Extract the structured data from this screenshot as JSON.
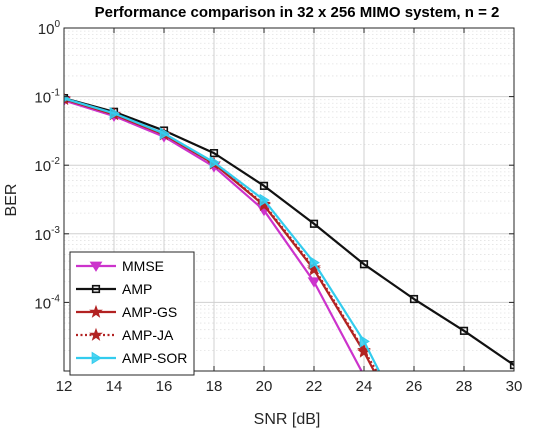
{
  "chart_data": {
    "type": "line",
    "title": "Performance comparison in 32 x 256 MIMO system, n = 2",
    "xlabel": "SNR [dB]",
    "ylabel": "BER",
    "x_ticks": [
      12,
      14,
      16,
      18,
      20,
      22,
      24,
      26,
      28,
      30
    ],
    "xlim": [
      12,
      30
    ],
    "y_scale": "log",
    "ylim": [
      1e-05,
      1
    ],
    "y_ticks": [
      {
        "value": 1,
        "base": "10",
        "exp": "0"
      },
      {
        "value": 0.1,
        "base": "10",
        "exp": "-1"
      },
      {
        "value": 0.01,
        "base": "10",
        "exp": "-2"
      },
      {
        "value": 0.001,
        "base": "10",
        "exp": "-3"
      },
      {
        "value": 0.0001,
        "base": "10",
        "exp": "-4"
      }
    ],
    "grid": true,
    "legend_position": "bottom-left",
    "series": [
      {
        "name": "MMSE",
        "color": "#cc33cc",
        "dash": "solid",
        "marker": "triangle-down",
        "x": [
          12,
          14,
          16,
          18,
          20,
          22,
          23.9
        ],
        "y": [
          0.088,
          0.052,
          0.026,
          0.0095,
          0.0022,
          0.0002,
          1e-05
        ]
      },
      {
        "name": "AMP",
        "color": "#111111",
        "dash": "solid",
        "marker": "square",
        "x": [
          12,
          14,
          16,
          18,
          20,
          22,
          24,
          26,
          28,
          30
        ],
        "y": [
          0.095,
          0.06,
          0.032,
          0.015,
          0.005,
          0.0014,
          0.00036,
          0.000112,
          3.85e-05,
          1.22e-05
        ]
      },
      {
        "name": "AMP-GS",
        "color": "#b22222",
        "dash": "solid",
        "marker": "star",
        "x": [
          12,
          14,
          16,
          18,
          20,
          22,
          24,
          24.4
        ],
        "y": [
          0.092,
          0.055,
          0.028,
          0.0105,
          0.0026,
          0.0003,
          1.9e-05,
          1e-05
        ]
      },
      {
        "name": "AMP-JA",
        "color": "#b22222",
        "dash": "dotted",
        "marker": "star",
        "x": [
          12,
          14,
          16,
          18,
          20,
          22,
          24,
          24.5
        ],
        "y": [
          0.092,
          0.055,
          0.028,
          0.0105,
          0.0027,
          0.00032,
          2e-05,
          1e-05
        ]
      },
      {
        "name": "AMP-SOR",
        "color": "#33ccee",
        "dash": "solid",
        "marker": "triangle-right",
        "x": [
          12,
          14,
          16,
          18,
          20,
          22,
          24,
          24.6
        ],
        "y": [
          0.094,
          0.057,
          0.029,
          0.011,
          0.0031,
          0.00038,
          2.7e-05,
          1e-05
        ]
      }
    ]
  }
}
